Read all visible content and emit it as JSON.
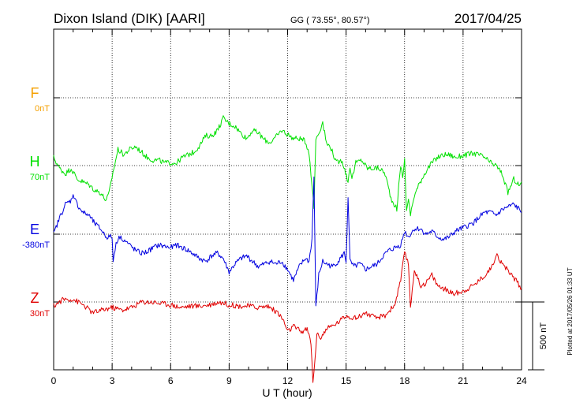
{
  "header": {
    "station": "Dixon Island (DIK)  [AARI]",
    "coords": "GG ( 73.55°,  80.57°)",
    "date": "2017/04/25"
  },
  "side_note": "Plotted at 2017/05/26 01:33 UT",
  "scale_bar": {
    "label": "500 nT",
    "value_nT": 500
  },
  "colors": {
    "F": "#f5a000",
    "H": "#00e000",
    "E": "#0000e0",
    "Z": "#e00000",
    "axis": "#000000"
  },
  "chart_data": {
    "type": "line",
    "xlabel": "U T (hour)",
    "xlim": [
      0,
      24
    ],
    "xticks": [
      "0",
      "3",
      "6",
      "9",
      "12",
      "15",
      "18",
      "21",
      "24"
    ],
    "series": [
      {
        "name": "F",
        "baseline_label": "0nT",
        "x": [],
        "y": []
      },
      {
        "name": "H",
        "baseline_label": "70nT",
        "x": [
          0,
          0.3,
          0.6,
          0.9,
          1.2,
          1.5,
          1.8,
          2.1,
          2.4,
          2.7,
          2.85,
          3.0,
          3.3,
          3.6,
          3.9,
          4.2,
          4.5,
          4.8,
          5.1,
          5.4,
          5.7,
          6.0,
          6.3,
          6.6,
          6.9,
          7.2,
          7.5,
          7.8,
          8.1,
          8.4,
          8.7,
          9.0,
          9.3,
          9.6,
          9.9,
          10.2,
          10.5,
          10.8,
          11.1,
          11.4,
          11.7,
          12.0,
          12.3,
          12.6,
          12.9,
          13.1,
          13.25,
          13.35,
          13.45,
          13.6,
          13.8,
          14.0,
          14.2,
          14.5,
          14.8,
          15.1,
          15.2,
          15.3,
          15.5,
          15.8,
          16.1,
          16.4,
          16.7,
          17.0,
          17.3,
          17.6,
          17.8,
          17.9,
          18.0,
          18.1,
          18.2,
          18.3,
          18.5,
          18.8,
          19.1,
          19.4,
          19.7,
          20.0,
          20.3,
          20.6,
          20.9,
          21.2,
          21.5,
          21.8,
          22.1,
          22.4,
          22.7,
          23.0,
          23.3,
          23.6,
          23.9,
          24.0
        ],
        "y": [
          60,
          -20,
          -60,
          -20,
          -100,
          -120,
          -140,
          -180,
          -200,
          -260,
          -200,
          -80,
          120,
          80,
          120,
          140,
          100,
          60,
          40,
          40,
          20,
          20,
          20,
          60,
          80,
          100,
          150,
          220,
          220,
          260,
          350,
          310,
          290,
          240,
          200,
          260,
          240,
          190,
          170,
          210,
          260,
          230,
          200,
          200,
          180,
          100,
          -140,
          -310,
          200,
          240,
          320,
          160,
          140,
          20,
          40,
          -120,
          0,
          -100,
          20,
          40,
          -20,
          -20,
          -20,
          -60,
          -240,
          -320,
          0,
          -80,
          40,
          -320,
          -260,
          -360,
          -220,
          -120,
          -40,
          20,
          60,
          80,
          80,
          60,
          70,
          80,
          90,
          80,
          60,
          20,
          0,
          -60,
          -200,
          -100,
          -150,
          -120
        ]
      },
      {
        "name": "E",
        "baseline_label": "-380nT",
        "x": [
          0,
          0.3,
          0.6,
          0.9,
          1.0,
          1.2,
          1.5,
          1.8,
          2.1,
          2.4,
          2.7,
          3.0,
          3.05,
          3.2,
          3.4,
          3.6,
          3.9,
          4.2,
          4.5,
          4.8,
          5.1,
          5.4,
          5.7,
          6.0,
          6.3,
          6.6,
          6.9,
          7.2,
          7.5,
          7.8,
          8.1,
          8.4,
          8.7,
          9.0,
          9.3,
          9.6,
          9.9,
          10.2,
          10.5,
          10.8,
          11.1,
          11.4,
          11.7,
          12.0,
          12.3,
          12.6,
          12.9,
          13.1,
          13.25,
          13.35,
          13.45,
          13.6,
          13.8,
          14.0,
          14.3,
          14.6,
          14.9,
          15.0,
          15.1,
          15.2,
          15.4,
          15.7,
          16.0,
          16.3,
          16.6,
          16.9,
          17.2,
          17.5,
          17.8,
          18.0,
          18.2,
          18.5,
          18.8,
          19.1,
          19.4,
          19.7,
          20.0,
          20.3,
          20.6,
          20.9,
          21.2,
          21.5,
          21.8,
          22.1,
          22.4,
          22.7,
          23.0,
          23.3,
          23.6,
          23.9,
          24.0
        ],
        "y": [
          0,
          120,
          220,
          250,
          300,
          220,
          160,
          140,
          80,
          40,
          -20,
          -20,
          -200,
          -60,
          -20,
          -40,
          -80,
          -120,
          -140,
          -130,
          -100,
          -80,
          -90,
          -100,
          -80,
          -100,
          -120,
          -150,
          -180,
          -200,
          -160,
          -140,
          -180,
          -280,
          -220,
          -180,
          -160,
          -200,
          -240,
          -220,
          -200,
          -220,
          -200,
          -260,
          -340,
          -240,
          -180,
          -200,
          -40,
          420,
          -540,
          -300,
          -200,
          -220,
          -240,
          -200,
          -140,
          -200,
          280,
          -200,
          -240,
          -220,
          -260,
          -240,
          -220,
          -160,
          -120,
          -100,
          -80,
          20,
          -20,
          40,
          40,
          0,
          20,
          -20,
          -40,
          -20,
          20,
          40,
          60,
          80,
          120,
          160,
          160,
          140,
          180,
          200,
          220,
          180,
          160
        ]
      },
      {
        "name": "Z",
        "baseline_label": "30nT",
        "x": [
          0,
          0.5,
          1.0,
          1.5,
          2.0,
          2.5,
          3.0,
          3.5,
          4.0,
          4.5,
          5.0,
          5.5,
          6.0,
          6.5,
          7.0,
          7.5,
          8.0,
          8.5,
          9.0,
          9.5,
          10.0,
          10.5,
          11.0,
          11.5,
          11.8,
          12.0,
          12.3,
          12.7,
          13.0,
          13.2,
          13.3,
          13.4,
          13.5,
          13.7,
          14.0,
          14.5,
          15.0,
          15.5,
          16.0,
          16.5,
          17.0,
          17.5,
          17.8,
          18.0,
          18.2,
          18.3,
          18.5,
          18.8,
          19.1,
          19.4,
          19.7,
          20.0,
          20.5,
          21.0,
          21.5,
          22.0,
          22.5,
          22.7,
          23.0,
          23.5,
          24.0
        ],
        "y": [
          -30,
          20,
          20,
          -20,
          -80,
          -60,
          -40,
          -60,
          -40,
          0,
          0,
          -10,
          -20,
          -40,
          -30,
          -30,
          -20,
          0,
          -20,
          -30,
          -30,
          -40,
          -30,
          -80,
          -140,
          -220,
          -180,
          -220,
          -200,
          -300,
          -600,
          -420,
          -240,
          -260,
          -200,
          -160,
          -100,
          -120,
          -80,
          -120,
          -100,
          -20,
          160,
          360,
          280,
          -40,
          240,
          120,
          140,
          200,
          120,
          100,
          60,
          80,
          120,
          180,
          260,
          360,
          280,
          200,
          100
        ]
      }
    ]
  }
}
